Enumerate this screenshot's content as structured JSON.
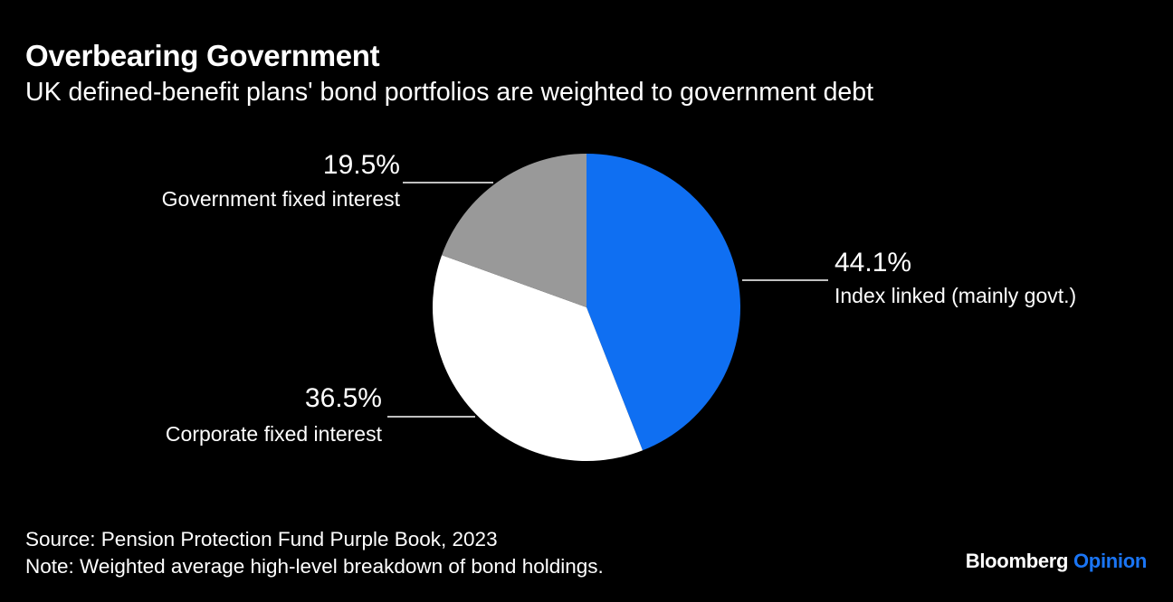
{
  "title": "Overbearing Government",
  "subtitle": "UK defined-benefit plans' bond portfolios are weighted to government debt",
  "chart_data": {
    "type": "pie",
    "start": "top",
    "direction": "clockwise",
    "slices": [
      {
        "label": "Index linked (mainly govt.)",
        "value": 44.1,
        "value_label": "44.1%",
        "color": "#0f6ff2"
      },
      {
        "label": "Corporate fixed interest",
        "value": 36.5,
        "value_label": "36.5%",
        "color": "#ffffff"
      },
      {
        "label": "Government fixed interest",
        "value": 19.5,
        "value_label": "19.5%",
        "color": "#999999"
      }
    ]
  },
  "footer": {
    "source": "Source: Pension Protection Fund Purple Book, 2023",
    "note": "Note: Weighted average high-level breakdown of bond holdings."
  },
  "logo": {
    "brand": "Bloomberg",
    "product": "Opinion",
    "product_color": "#1a75f5"
  }
}
